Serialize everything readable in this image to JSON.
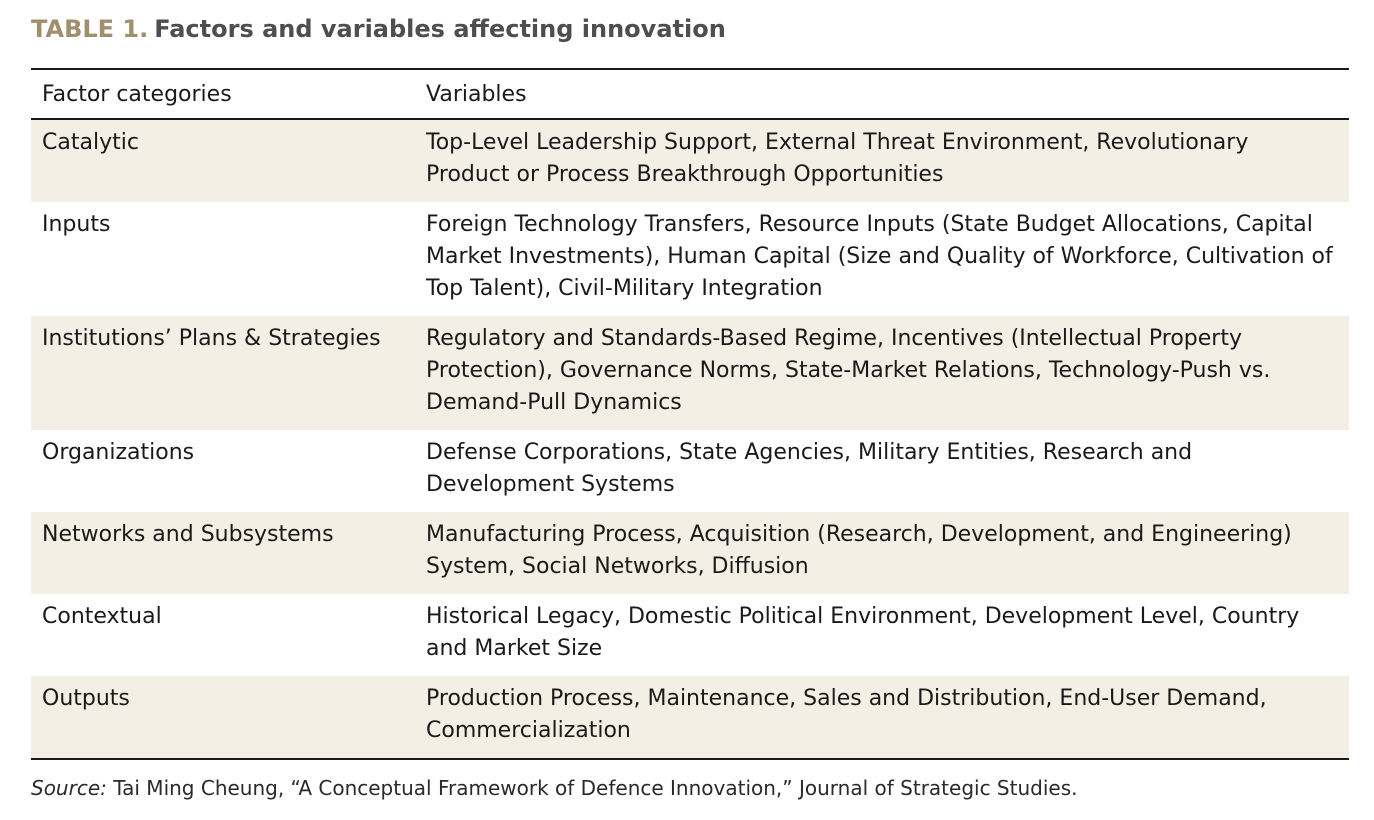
{
  "title": {
    "label": "TABLE 1.",
    "text": "Factors and variables affecting innovation"
  },
  "table": {
    "headers": [
      "Factor categories",
      "Variables"
    ],
    "rows": [
      {
        "category": "Catalytic",
        "variables": "Top-Level Leadership Support, External Threat Environment, Revolutionary Product or Process Breakthrough Opportunities"
      },
      {
        "category": "Inputs",
        "variables": "Foreign Technology Transfers, Resource Inputs (State Budget Allocations, Capital Market Investments), Human Capital (Size and Quality of Workforce, Cultivation of Top Talent), Civil-Military Integration"
      },
      {
        "category": "Institutions’ Plans & Strategies",
        "variables": "Regulatory and Standards-Based Regime, Incentives (Intellectual Property Protection), Governance Norms, State-Market Relations, Technology-Push vs. Demand-Pull Dynamics"
      },
      {
        "category": "Organizations",
        "variables": "Defense Corporations, State Agencies, Military Entities, Research and Development Systems"
      },
      {
        "category": "Networks and Subsystems",
        "variables": "Manufacturing Process, Acquisition (Research, Development, and Engineering) System, Social Networks, Diffusion"
      },
      {
        "category": "Contextual",
        "variables": "Historical Legacy, Domestic Political Environment, Development Level, Country and Market Size"
      },
      {
        "category": "Outputs",
        "variables": "Production Process, Maintenance, Sales and Distribution, End-User Demand, Commercialization"
      }
    ]
  },
  "source": {
    "label": "Source:",
    "text": "Tai Ming Cheung, “A Conceptual Framework of Defence Innovation,” Journal of Strategic Studies."
  },
  "colors": {
    "title_label": "#a08f6c",
    "title_text": "#4e4e4e",
    "row_shade": "#f3efe4",
    "rule": "#1a1a1a"
  }
}
